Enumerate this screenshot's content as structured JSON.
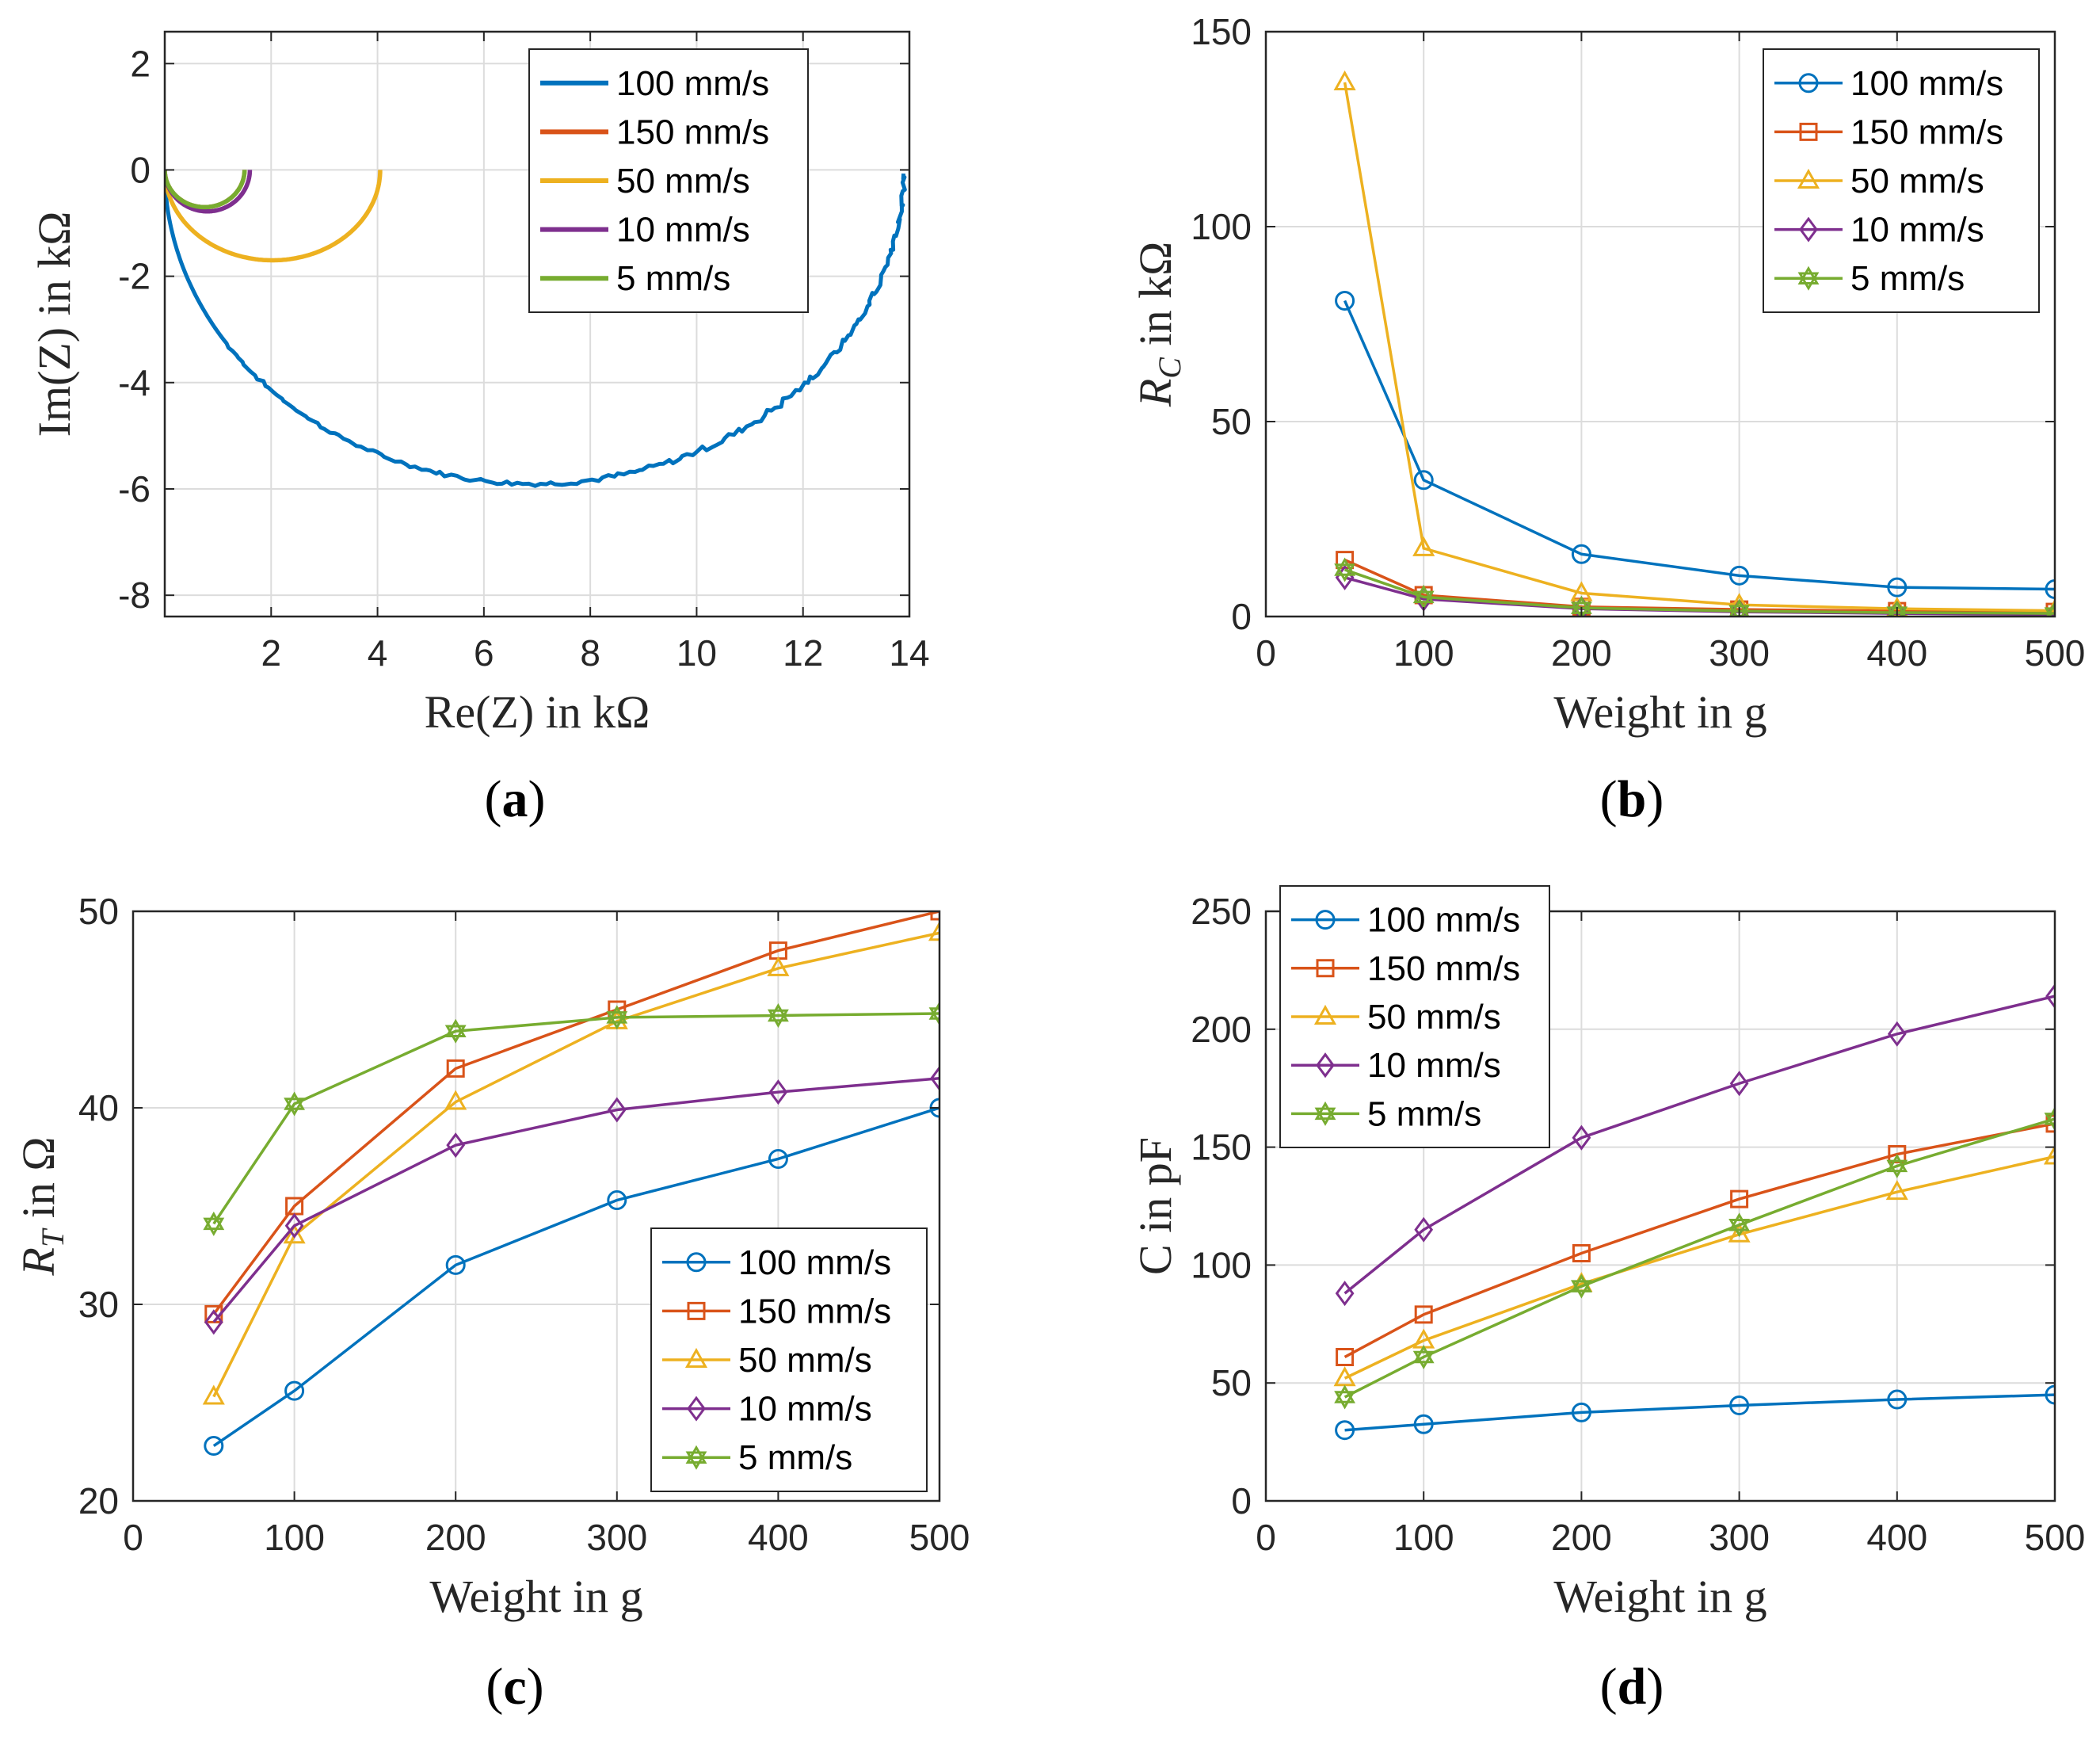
{
  "figure": {
    "colors": {
      "100 mm/s": "#0072BD",
      "150 mm/s": "#D95319",
      "50 mm/s": "#EDB120",
      "10 mm/s": "#7E2F8E",
      "5 mm/s": "#77AC30"
    }
  },
  "chart_data": [
    {
      "id": "a",
      "type": "line",
      "caption": "(a)",
      "xlabel": "Re(Z) in kΩ",
      "ylabel": "Im(Z) in kΩ",
      "xlim": [
        0,
        14
      ],
      "ylim": [
        -8.4,
        2.6
      ],
      "xticks": [
        2,
        4,
        6,
        8,
        10,
        12,
        14
      ],
      "yticks": [
        -8,
        -6,
        -4,
        -2,
        0,
        2
      ],
      "grid": true,
      "legend_position": "top-right",
      "series": [
        {
          "name": "100 mm/s",
          "marker": "none",
          "semicircle": {
            "x0": 0,
            "x1": 13.9,
            "ymin": -5.9
          },
          "noise": true
        },
        {
          "name": "150 mm/s",
          "marker": "none",
          "semicircle": {
            "x0": 0,
            "x1": 1.5,
            "ymin": -0.7
          }
        },
        {
          "name": "50 mm/s",
          "marker": "none",
          "semicircle": {
            "x0": 0,
            "x1": 4.05,
            "ymin": -1.7
          }
        },
        {
          "name": "10 mm/s",
          "marker": "none",
          "semicircle": {
            "x0": 0,
            "x1": 1.6,
            "ymin": -0.78
          }
        },
        {
          "name": "5 mm/s",
          "marker": "none",
          "semicircle": {
            "x0": 0,
            "x1": 1.5,
            "ymin": -0.7
          }
        }
      ]
    },
    {
      "id": "b",
      "type": "line",
      "caption": "(b)",
      "xlabel": "Weight in g",
      "ylabel": "R_C in kΩ",
      "xlim": [
        0,
        500
      ],
      "ylim": [
        0,
        150
      ],
      "xticks": [
        0,
        100,
        200,
        300,
        400,
        500
      ],
      "yticks": [
        0,
        50,
        100,
        150
      ],
      "grid": true,
      "legend_position": "top-right",
      "x": [
        50,
        100,
        200,
        300,
        400,
        500
      ],
      "series": [
        {
          "name": "100 mm/s",
          "marker": "circle",
          "values": [
            81,
            35,
            16,
            10.5,
            7.5,
            7
          ]
        },
        {
          "name": "150 mm/s",
          "marker": "square",
          "values": [
            14.5,
            5.5,
            2.5,
            1.8,
            1.4,
            1.2
          ]
        },
        {
          "name": "50 mm/s",
          "marker": "triangle",
          "values": [
            137,
            17.5,
            6,
            3,
            2,
            1.5
          ]
        },
        {
          "name": "10 mm/s",
          "marker": "diamond",
          "values": [
            10,
            4.5,
            2,
            1.2,
            0.8,
            0.5
          ]
        },
        {
          "name": "5 mm/s",
          "marker": "hexagram",
          "values": [
            12,
            5,
            2.2,
            1.4,
            1,
            0.8
          ]
        }
      ]
    },
    {
      "id": "c",
      "type": "line",
      "caption": "(c)",
      "xlabel": "Weight in g",
      "ylabel": "R_T in Ω",
      "xlim": [
        0,
        500
      ],
      "ylim": [
        20,
        50
      ],
      "xticks": [
        0,
        100,
        200,
        300,
        400,
        500
      ],
      "yticks": [
        20,
        30,
        40,
        50
      ],
      "grid": true,
      "legend_position": "bottom-right",
      "x": [
        50,
        100,
        200,
        300,
        400,
        500
      ],
      "series": [
        {
          "name": "100 mm/s",
          "marker": "circle",
          "values": [
            22.8,
            25.6,
            32,
            35.3,
            37.4,
            40
          ]
        },
        {
          "name": "150 mm/s",
          "marker": "square",
          "values": [
            29.5,
            35,
            42,
            45,
            48,
            50
          ]
        },
        {
          "name": "50 mm/s",
          "marker": "triangle",
          "values": [
            25.3,
            33.5,
            40.3,
            44.4,
            47.1,
            48.9
          ]
        },
        {
          "name": "10 mm/s",
          "marker": "diamond",
          "values": [
            29.1,
            34,
            38.1,
            39.9,
            40.8,
            41.5
          ]
        },
        {
          "name": "5 mm/s",
          "marker": "hexagram",
          "values": [
            34.1,
            40.2,
            43.9,
            44.6,
            44.7,
            44.8
          ]
        }
      ]
    },
    {
      "id": "d",
      "type": "line",
      "caption": "(d)",
      "xlabel": "Weight in g",
      "ylabel": "C in pF",
      "xlim": [
        0,
        500
      ],
      "ylim": [
        0,
        250
      ],
      "xticks": [
        0,
        100,
        200,
        300,
        400,
        500
      ],
      "yticks": [
        0,
        50,
        100,
        150,
        200,
        250
      ],
      "grid": true,
      "legend_position": "top-left",
      "x": [
        50,
        100,
        200,
        300,
        400,
        500
      ],
      "series": [
        {
          "name": "100 mm/s",
          "marker": "circle",
          "values": [
            30,
            32.5,
            37.5,
            40.5,
            43,
            45
          ]
        },
        {
          "name": "150 mm/s",
          "marker": "square",
          "values": [
            61,
            79,
            105,
            128,
            147,
            160
          ]
        },
        {
          "name": "50 mm/s",
          "marker": "triangle",
          "values": [
            52,
            68,
            92,
            113,
            131,
            146
          ]
        },
        {
          "name": "10 mm/s",
          "marker": "diamond",
          "values": [
            88,
            115,
            154,
            177,
            198,
            214
          ]
        },
        {
          "name": "5 mm/s",
          "marker": "hexagram",
          "values": [
            44,
            61,
            91,
            117,
            142,
            162
          ]
        }
      ]
    }
  ]
}
